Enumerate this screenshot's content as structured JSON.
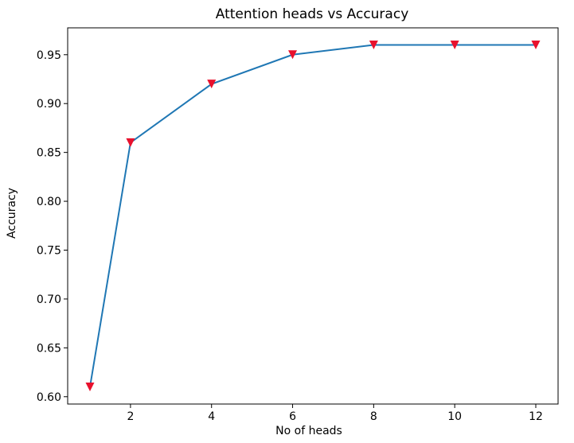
{
  "chart_data": {
    "type": "line",
    "title": "Attention heads vs Accuracy",
    "xlabel": "No of heads",
    "ylabel": "Accuracy",
    "x": [
      1,
      2,
      4,
      6,
      8,
      10,
      12
    ],
    "series": [
      {
        "values": [
          0.61,
          0.86,
          0.92,
          0.95,
          0.96,
          0.96,
          0.96
        ]
      }
    ],
    "xticks": [
      2,
      4,
      6,
      8,
      10,
      12
    ],
    "xtick_labels": [
      "2",
      "4",
      "6",
      "8",
      "10",
      "12"
    ],
    "yticks": [
      0.6,
      0.65,
      0.7,
      0.75,
      0.8,
      0.85,
      0.9,
      0.95
    ],
    "ytick_labels": [
      "0.60",
      "0.65",
      "0.70",
      "0.75",
      "0.80",
      "0.85",
      "0.90",
      "0.95"
    ],
    "xlim": [
      0.45,
      12.55
    ],
    "ylim": [
      0.5925,
      0.9775
    ],
    "grid": false,
    "line_color": "#1f77b4",
    "marker": "triangle-down",
    "marker_color": "#e8112d"
  }
}
